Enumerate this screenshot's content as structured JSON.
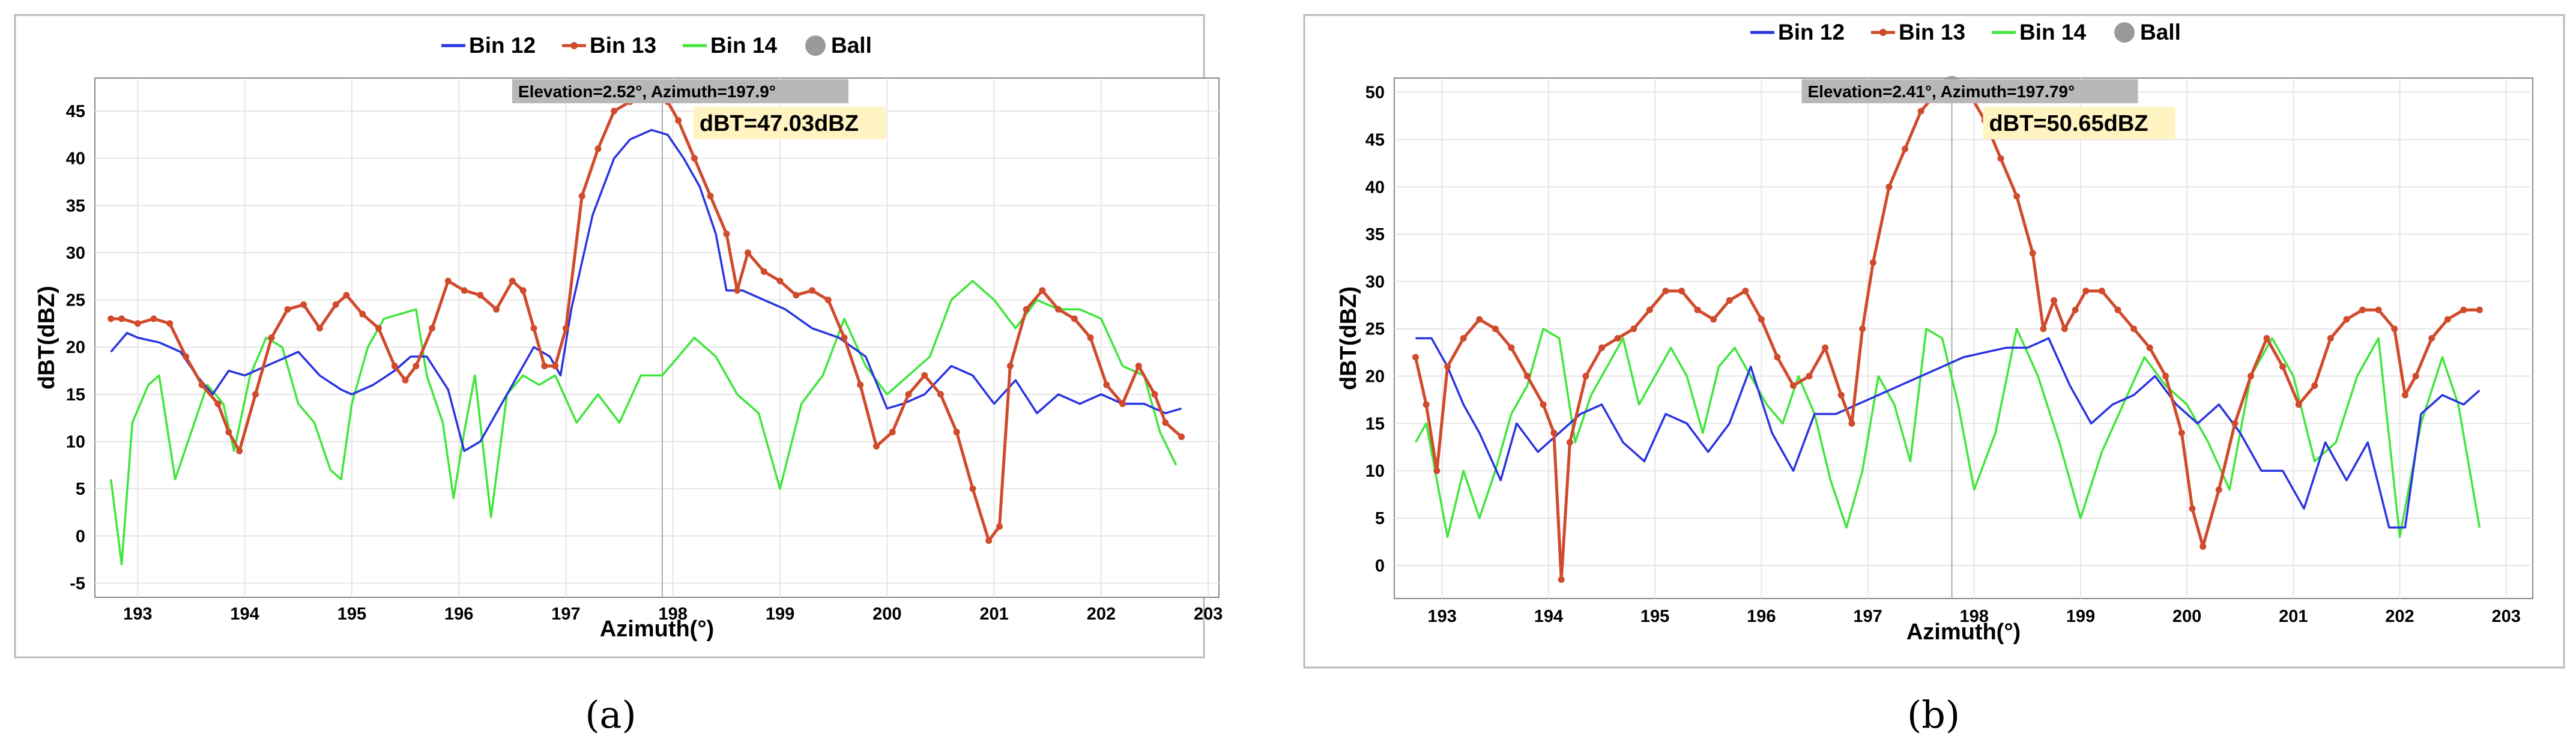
{
  "colors": {
    "bin12": "#2a33e0",
    "bin13": "#d04a2c",
    "bin14": "#3fe63a",
    "ball": "#9a9a9a",
    "grid": "#e6e6e6",
    "frame": "#bbbbbb",
    "highlight": "#fff3c2"
  },
  "chart_data": [
    {
      "panel_label": "(a)",
      "type": "line",
      "title": "",
      "xlabel": "Azimuth(°)",
      "ylabel": "dBT(dBZ)",
      "xlim": [
        192.6,
        203.1
      ],
      "ylim": [
        -6.5,
        48.5
      ],
      "xticks": [
        "193",
        "194",
        "195",
        "196",
        "197",
        "198",
        "199",
        "200",
        "201",
        "202",
        "203"
      ],
      "yticks": [
        "-5",
        "0",
        "5",
        "10",
        "15",
        "20",
        "25",
        "30",
        "35",
        "40",
        "45"
      ],
      "grid": true,
      "legend": "top-center",
      "legend_entries": [
        "Bin 12",
        "Bin 13",
        "Bin 14",
        "Ball"
      ],
      "series": [
        {
          "name": "Bin 12",
          "color": "#2a33e0",
          "markers": false,
          "x": [
            192.75,
            192.9,
            193.0,
            193.2,
            193.4,
            193.55,
            193.7,
            193.85,
            194.0,
            194.2,
            194.4,
            194.5,
            194.7,
            194.9,
            195.0,
            195.2,
            195.4,
            195.55,
            195.7,
            195.9,
            196.05,
            196.2,
            196.35,
            196.5,
            196.7,
            196.85,
            196.95,
            197.05,
            197.25,
            197.45,
            197.6,
            197.8,
            197.95,
            198.1,
            198.25,
            198.4,
            198.5,
            198.65,
            198.85,
            199.05,
            199.3,
            199.55,
            199.8,
            200.0,
            200.15,
            200.35,
            200.6,
            200.8,
            201.0,
            201.2,
            201.4,
            201.6,
            201.8,
            202.0,
            202.2,
            202.4,
            202.6,
            202.75
          ],
          "y": [
            19.5,
            21.5,
            21,
            20.5,
            19.5,
            17,
            15,
            17.5,
            17,
            18,
            19,
            19.5,
            17,
            15.5,
            15,
            16,
            17.5,
            19,
            19,
            15.5,
            9,
            10,
            13,
            16,
            20,
            19,
            17,
            24,
            34,
            40,
            42,
            43,
            42.5,
            40,
            37,
            32,
            26,
            26,
            25,
            24,
            22,
            21,
            19,
            13.5,
            14,
            15,
            18,
            17,
            14,
            16.5,
            13,
            15,
            14,
            15,
            14,
            14,
            13,
            13.5
          ]
        },
        {
          "name": "Bin 13",
          "color": "#d04a2c",
          "markers": true,
          "x": [
            192.75,
            192.85,
            193.0,
            193.15,
            193.3,
            193.45,
            193.6,
            193.75,
            193.85,
            193.95,
            194.1,
            194.25,
            194.4,
            194.55,
            194.7,
            194.85,
            194.95,
            195.1,
            195.25,
            195.4,
            195.5,
            195.6,
            195.75,
            195.9,
            196.05,
            196.2,
            196.35,
            196.5,
            196.6,
            196.7,
            196.8,
            196.9,
            197.0,
            197.15,
            197.3,
            197.45,
            197.6,
            197.75,
            197.85,
            197.95,
            198.05,
            198.2,
            198.35,
            198.5,
            198.6,
            198.7,
            198.85,
            199.0,
            199.15,
            199.3,
            199.45,
            199.6,
            199.75,
            199.9,
            200.05,
            200.2,
            200.35,
            200.5,
            200.65,
            200.8,
            200.95,
            201.05,
            201.15,
            201.3,
            201.45,
            201.6,
            201.75,
            201.9,
            202.05,
            202.2,
            202.35,
            202.5,
            202.6,
            202.75
          ],
          "y": [
            23,
            23,
            22.5,
            23,
            22.5,
            19,
            16,
            14,
            11,
            9,
            15,
            21,
            24,
            24.5,
            22,
            24.5,
            25.5,
            23.5,
            22,
            18,
            16.5,
            18,
            22,
            27,
            26,
            25.5,
            24,
            27,
            26,
            22,
            18,
            18,
            22,
            36,
            41,
            45,
            46,
            47,
            47.03,
            46,
            44,
            40,
            36,
            32,
            26,
            30,
            28,
            27,
            25.5,
            26,
            25,
            21,
            16,
            9.5,
            11,
            15,
            17,
            15,
            11,
            5,
            -0.5,
            1,
            18,
            24,
            26,
            24,
            23,
            21,
            16,
            14,
            18,
            15,
            12,
            10.5
          ]
        },
        {
          "name": "Bin 14",
          "color": "#3fe63a",
          "markers": false,
          "x": [
            192.75,
            192.85,
            192.95,
            193.1,
            193.2,
            193.35,
            193.5,
            193.65,
            193.8,
            193.9,
            194.05,
            194.2,
            194.35,
            194.5,
            194.65,
            194.8,
            194.9,
            195.0,
            195.15,
            195.3,
            195.45,
            195.6,
            195.7,
            195.85,
            195.95,
            196.05,
            196.15,
            196.3,
            196.45,
            196.6,
            196.75,
            196.9,
            197.1,
            197.3,
            197.5,
            197.7,
            197.9,
            198.05,
            198.2,
            198.4,
            198.6,
            198.8,
            199.0,
            199.2,
            199.4,
            199.6,
            199.8,
            200.0,
            200.2,
            200.4,
            200.6,
            200.8,
            201.0,
            201.2,
            201.4,
            201.6,
            201.8,
            202.0,
            202.2,
            202.4,
            202.55,
            202.7
          ],
          "y": [
            6,
            -3,
            12,
            16,
            17,
            6,
            11,
            16,
            14,
            9,
            17,
            21,
            20,
            14,
            12,
            7,
            6,
            14,
            20,
            23,
            23.5,
            24,
            17,
            12,
            4,
            11,
            17,
            2,
            15,
            17,
            16,
            17,
            12,
            15,
            12,
            17,
            17,
            19,
            21,
            19,
            15,
            13,
            5,
            14,
            17,
            23,
            18,
            15,
            17,
            19,
            25,
            27,
            25,
            22,
            25,
            24,
            24,
            23,
            18,
            17,
            11,
            7.5
          ]
        }
      ],
      "ball": {
        "x": 197.9,
        "y": 47.03
      },
      "annotations": [
        "Elevation=2.52°, Azimuth=197.9°",
        "dBT=47.03dBZ"
      ]
    },
    {
      "panel_label": "(b)",
      "type": "line",
      "title": "",
      "xlabel": "Azimuth(°)",
      "ylabel": "dBT(dBZ)",
      "xlim": [
        192.55,
        203.25
      ],
      "ylim": [
        -3.5,
        51.5
      ],
      "xticks": [
        "193",
        "194",
        "195",
        "196",
        "197",
        "198",
        "199",
        "200",
        "201",
        "202",
        "203"
      ],
      "yticks": [
        "0",
        "5",
        "10",
        "15",
        "20",
        "25",
        "30",
        "35",
        "40",
        "45",
        "50"
      ],
      "grid": true,
      "legend": "top-center",
      "legend_entries": [
        "Bin 12",
        "Bin 13",
        "Bin 14",
        "Ball"
      ],
      "series": [
        {
          "name": "Bin 12",
          "color": "#2a33e0",
          "markers": false,
          "x": [
            192.75,
            192.9,
            193.05,
            193.2,
            193.35,
            193.55,
            193.7,
            193.9,
            194.1,
            194.3,
            194.5,
            194.7,
            194.9,
            195.1,
            195.3,
            195.5,
            195.7,
            195.9,
            196.1,
            196.3,
            196.5,
            196.7,
            196.9,
            197.1,
            197.3,
            197.5,
            197.7,
            197.9,
            198.1,
            198.3,
            198.5,
            198.7,
            198.9,
            199.1,
            199.3,
            199.5,
            199.7,
            199.9,
            200.1,
            200.3,
            200.5,
            200.7,
            200.9,
            201.1,
            201.3,
            201.5,
            201.7,
            201.9,
            202.05,
            202.2,
            202.4,
            202.6,
            202.75
          ],
          "y": [
            24,
            24,
            21,
            17,
            14,
            9,
            15,
            12,
            14,
            16,
            17,
            13,
            11,
            16,
            15,
            12,
            15,
            21,
            14,
            10,
            16,
            16,
            17,
            18,
            19,
            20,
            21,
            22,
            22.5,
            23,
            23,
            24,
            19,
            15,
            17,
            18,
            20,
            17,
            15,
            17,
            14,
            10,
            10,
            6,
            13,
            9,
            13,
            4,
            4,
            16,
            18,
            17,
            18.5
          ]
        },
        {
          "name": "Bin 13",
          "color": "#d04a2c",
          "markers": true,
          "x": [
            192.75,
            192.85,
            192.95,
            193.05,
            193.2,
            193.35,
            193.5,
            193.65,
            193.8,
            193.95,
            194.05,
            194.12,
            194.2,
            194.35,
            194.5,
            194.65,
            194.8,
            194.95,
            195.1,
            195.25,
            195.4,
            195.55,
            195.7,
            195.85,
            196.0,
            196.15,
            196.3,
            196.45,
            196.6,
            196.75,
            196.85,
            196.95,
            197.05,
            197.2,
            197.35,
            197.5,
            197.65,
            197.8,
            197.95,
            198.1,
            198.25,
            198.4,
            198.55,
            198.65,
            198.75,
            198.85,
            198.95,
            199.05,
            199.2,
            199.35,
            199.5,
            199.65,
            199.8,
            199.95,
            200.05,
            200.15,
            200.3,
            200.45,
            200.6,
            200.75,
            200.9,
            201.05,
            201.2,
            201.35,
            201.5,
            201.65,
            201.8,
            201.95,
            202.05,
            202.15,
            202.3,
            202.45,
            202.6,
            202.75
          ],
          "y": [
            22,
            17,
            10,
            21,
            24,
            26,
            25,
            23,
            20,
            17,
            14,
            -1.5,
            13,
            20,
            23,
            24,
            25,
            27,
            29,
            29,
            27,
            26,
            28,
            29,
            26,
            22,
            19,
            20,
            23,
            18,
            15,
            25,
            32,
            40,
            44,
            48,
            50,
            50.65,
            50,
            47,
            43,
            39,
            33,
            25,
            28,
            25,
            27,
            29,
            29,
            27,
            25,
            23,
            20,
            14,
            6,
            2,
            8,
            15,
            20,
            24,
            21,
            17,
            19,
            24,
            26,
            27,
            27,
            25,
            18,
            20,
            24,
            26,
            27,
            27
          ]
        },
        {
          "name": "Bin 14",
          "color": "#3fe63a",
          "markers": false,
          "x": [
            192.75,
            192.85,
            192.95,
            193.05,
            193.2,
            193.35,
            193.5,
            193.65,
            193.8,
            193.95,
            194.1,
            194.25,
            194.4,
            194.55,
            194.7,
            194.85,
            195.0,
            195.15,
            195.3,
            195.45,
            195.6,
            195.75,
            195.9,
            196.05,
            196.2,
            196.35,
            196.5,
            196.65,
            196.8,
            196.95,
            197.1,
            197.25,
            197.4,
            197.55,
            197.7,
            197.85,
            198.0,
            198.2,
            198.4,
            198.6,
            198.8,
            199.0,
            199.2,
            199.4,
            199.6,
            199.8,
            200.0,
            200.2,
            200.4,
            200.6,
            200.8,
            201.0,
            201.2,
            201.4,
            201.6,
            201.8,
            202.0,
            202.2,
            202.4,
            202.55,
            202.75
          ],
          "y": [
            13,
            15,
            9,
            3,
            10,
            5,
            10,
            16,
            19,
            25,
            24,
            13,
            18,
            21,
            24,
            17,
            20,
            23,
            20,
            14,
            21,
            23,
            20,
            17,
            15,
            20,
            16,
            9,
            4,
            10,
            20,
            17,
            11,
            25,
            24,
            17,
            8,
            14,
            25,
            20,
            13,
            5,
            12,
            17,
            22,
            19,
            17,
            13,
            8,
            20,
            24,
            20,
            11,
            13,
            20,
            24,
            3,
            15,
            22,
            17,
            4
          ]
        }
      ],
      "ball": {
        "x": 197.79,
        "y": 50.65
      },
      "annotations": [
        "Elevation=2.41°, Azimuth=197.79°",
        "dBT=50.65dBZ"
      ]
    }
  ]
}
